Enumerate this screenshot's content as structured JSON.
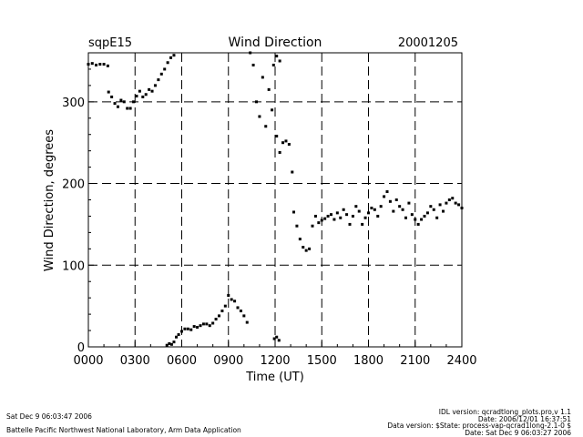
{
  "header": {
    "site": "sqpE15",
    "title": "Wind Direction",
    "date": "20001205"
  },
  "footer": {
    "left_line1": "Sat Dec  9 06:03:47 2006",
    "left_line2": "Battelle Pacific Northwest National Laboratory, Arm Data Application",
    "right_line1": "IDL version: qcradtlong_plots.pro,v 1.1",
    "right_line2": "Date: 2006/12/01 16:37:51",
    "right_line3": "Data version: $State: process-vap-qcrad1long-2.1-0 $",
    "right_line4": "Date: Sat Dec  9 06:03:27 2006"
  },
  "chart_data": {
    "type": "scatter",
    "title": "Wind Direction",
    "xlabel": "Time (UT)",
    "ylabel": "Wind Direction, degrees",
    "xlim": [
      0,
      24
    ],
    "ylim": [
      0,
      360
    ],
    "x_ticks": [
      0,
      3,
      6,
      9,
      12,
      15,
      18,
      21,
      24
    ],
    "x_tick_labels": [
      "0000",
      "0300",
      "0600",
      "0900",
      "1200",
      "1500",
      "1800",
      "2100",
      "2400"
    ],
    "y_ticks": [
      0,
      100,
      200,
      300
    ],
    "y_tick_labels": [
      "0",
      "100",
      "200",
      "300"
    ],
    "grid": "dashed at major ticks",
    "series": [
      {
        "color": "#000000",
        "segments": [
          {
            "x": [
              0.0,
              0.25,
              0.5,
              0.75,
              1.0,
              1.25
            ],
            "y": [
              346,
              347,
              345,
              346,
              346,
              344
            ]
          },
          {
            "x": [
              1.3,
              1.5,
              1.7,
              1.9,
              2.1,
              2.3,
              2.5,
              2.7,
              2.9,
              3.1,
              3.3,
              3.5,
              3.7,
              3.9,
              4.1,
              4.3,
              4.5,
              4.7,
              4.9,
              5.1,
              5.3,
              5.5
            ],
            "y": [
              312,
              306,
              298,
              294,
              302,
              300,
              292,
              292,
              300,
              307,
              313,
              306,
              309,
              315,
              313,
              320,
              327,
              334,
              340,
              348,
              354,
              357
            ]
          },
          {
            "x": [
              5.05,
              5.2,
              5.35,
              5.5,
              5.65,
              5.8,
              6.0,
              6.2,
              6.4,
              6.6,
              6.8,
              7.0,
              7.2,
              7.4,
              7.6,
              7.8,
              8.0,
              8.2,
              8.4,
              8.6,
              8.8,
              9.0,
              9.2,
              9.4,
              9.6,
              9.8,
              10.0,
              10.2
            ],
            "y": [
              2,
              4,
              3,
              6,
              12,
              15,
              19,
              22,
              22,
              21,
              25,
              24,
              26,
              28,
              28,
              26,
              29,
              34,
              38,
              44,
              50,
              63,
              58,
              56,
              48,
              44,
              38,
              30
            ]
          },
          {
            "x": [
              10.4,
              10.6,
              10.8,
              11.0,
              11.2,
              11.4,
              11.6,
              11.8
            ],
            "y": [
              360,
              345,
              300,
              282,
              330,
              270,
              315,
              290
            ]
          },
          {
            "x": [
              11.9,
              12.1,
              12.3
            ],
            "y": [
              345,
              356,
              350
            ]
          },
          {
            "x": [
              11.95,
              12.1,
              12.25
            ],
            "y": [
              10,
              12,
              8
            ]
          },
          {
            "x": [
              12.1,
              12.3,
              12.5,
              12.7,
              12.9,
              13.1
            ],
            "y": [
              258,
              238,
              250,
              252,
              248,
              214
            ]
          },
          {
            "x": [
              13.2,
              13.4,
              13.6,
              13.8,
              14.0,
              14.2,
              14.4,
              14.6,
              14.8,
              15.0,
              15.2,
              15.4,
              15.6,
              15.8,
              16.0,
              16.2,
              16.4,
              16.6,
              16.8,
              17.0,
              17.2,
              17.4,
              17.6,
              17.8,
              18.0,
              18.2,
              18.4,
              18.6,
              18.8,
              19.0,
              19.2,
              19.4,
              19.6,
              19.8,
              20.0,
              20.2,
              20.4,
              20.6,
              20.8,
              21.0,
              21.2,
              21.4,
              21.6,
              21.8,
              22.0,
              22.2,
              22.4,
              22.6,
              22.8,
              23.0,
              23.2,
              23.4,
              23.6,
              23.8,
              24.0
            ],
            "y": [
              165,
              148,
              132,
              122,
              118,
              120,
              148,
              160,
              152,
              155,
              157,
              160,
              162,
              156,
              164,
              158,
              168,
              162,
              150,
              160,
              172,
              166,
              150,
              158,
              164,
              170,
              168,
              160,
              172,
              184,
              190,
              178,
              166,
              180,
              172,
              168,
              158,
              176,
              162,
              156,
              150,
              156,
              160,
              164,
              172,
              168,
              158,
              174,
              166,
              176,
              180,
              182,
              176,
              174,
              170
            ]
          }
        ]
      }
    ]
  }
}
